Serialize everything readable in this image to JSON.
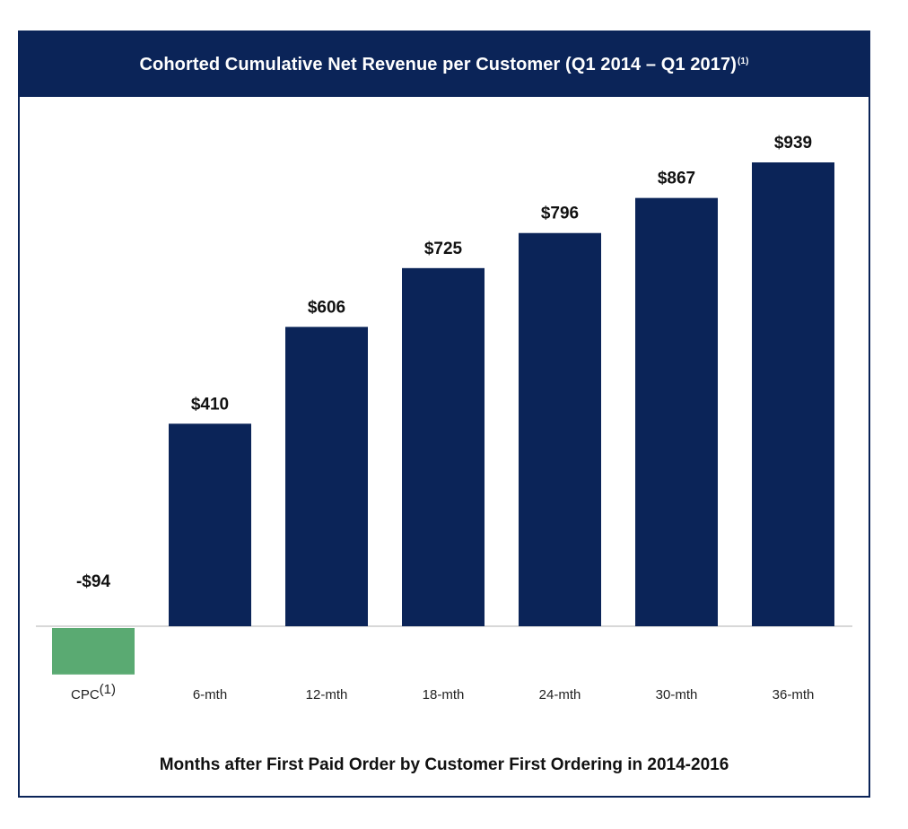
{
  "chart_data": {
    "type": "bar",
    "title": "Cohorted Cumulative Net Revenue per Customer (Q1 2014 – Q1 2017)",
    "title_footnote": "(1)",
    "xlabel": "Months after First Paid Order by Customer First Ordering in 2014-2016",
    "ylabel": "",
    "categories": [
      "CPC",
      "6-mth",
      "12-mth",
      "18-mth",
      "24-mth",
      "30-mth",
      "36-mth"
    ],
    "category_footnotes": [
      "(1)",
      "",
      "",
      "",
      "",
      "",
      ""
    ],
    "values": [
      -94,
      410,
      606,
      725,
      796,
      867,
      939
    ],
    "value_labels": [
      "-$94",
      "$410",
      "$606",
      "$725",
      "$796",
      "$867",
      "$939"
    ],
    "ylim": [
      -94,
      939
    ],
    "grid": false,
    "colors": {
      "positive": "#0b2458",
      "negative": "#5aaa72",
      "header": "#0b2458",
      "baseline": "#cccccc"
    }
  }
}
